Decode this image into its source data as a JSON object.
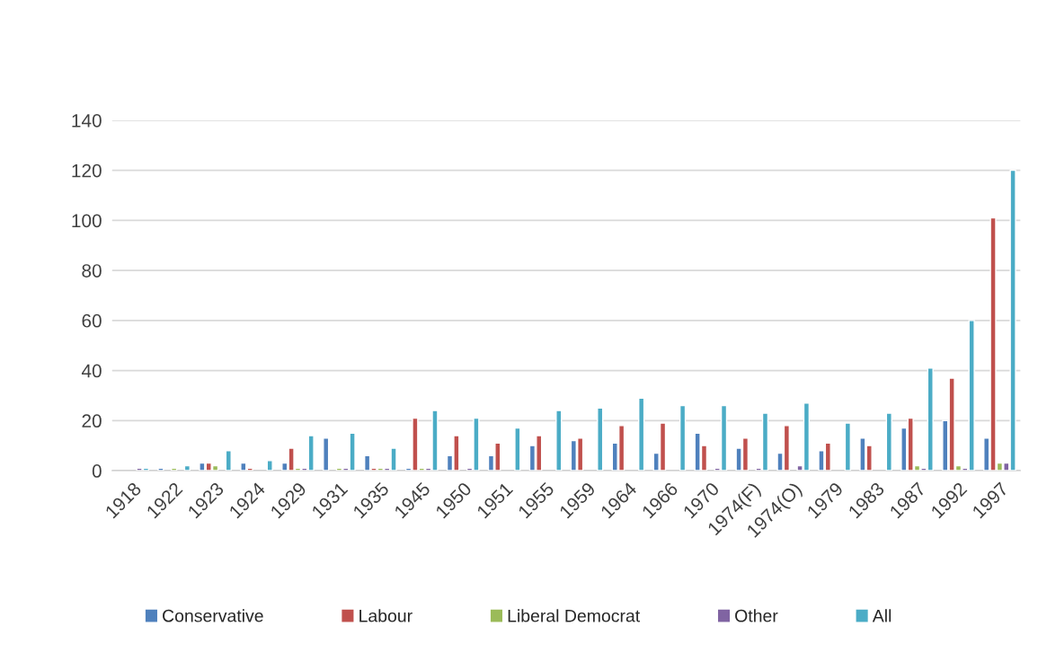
{
  "chart_data": {
    "type": "bar",
    "categories": [
      "1918",
      "1922",
      "1923",
      "1924",
      "1929",
      "1931",
      "1935",
      "1945",
      "1950",
      "1951",
      "1955",
      "1959",
      "1964",
      "1966",
      "1970",
      "1974(F)",
      "1974(O)",
      "1979",
      "1983",
      "1987",
      "1992",
      "1997"
    ],
    "series": [
      {
        "name": "Conservative",
        "color": "#4f81bd",
        "values": [
          null,
          1,
          3,
          3,
          3,
          13,
          6,
          1,
          6,
          6,
          10,
          12,
          11,
          7,
          15,
          9,
          7,
          8,
          13,
          17,
          20,
          13
        ]
      },
      {
        "name": "Labour",
        "color": "#c0504d",
        "values": [
          null,
          null,
          3,
          1,
          9,
          null,
          1,
          21,
          14,
          11,
          14,
          13,
          18,
          19,
          10,
          13,
          18,
          11,
          10,
          21,
          37,
          101
        ]
      },
      {
        "name": "Liberal Democrat",
        "color": "#9bbb59",
        "values": [
          null,
          1,
          2,
          null,
          1,
          1,
          1,
          1,
          null,
          null,
          null,
          null,
          null,
          null,
          null,
          null,
          null,
          null,
          null,
          2,
          2,
          3
        ]
      },
      {
        "name": "Other",
        "color": "#8064a2",
        "values": [
          1,
          null,
          null,
          null,
          1,
          1,
          1,
          1,
          1,
          null,
          null,
          null,
          null,
          null,
          1,
          1,
          2,
          null,
          null,
          1,
          1,
          3
        ]
      },
      {
        "name": "All",
        "color": "#4bacc6",
        "values": [
          1,
          2,
          8,
          4,
          14,
          15,
          9,
          24,
          21,
          17,
          24,
          25,
          29,
          26,
          26,
          23,
          27,
          19,
          23,
          41,
          60,
          120
        ]
      }
    ],
    "ylim": [
      0,
      140
    ],
    "yticks": [
      0,
      20,
      40,
      60,
      80,
      100,
      120,
      140
    ],
    "grid": "y",
    "legend": "bottom"
  }
}
